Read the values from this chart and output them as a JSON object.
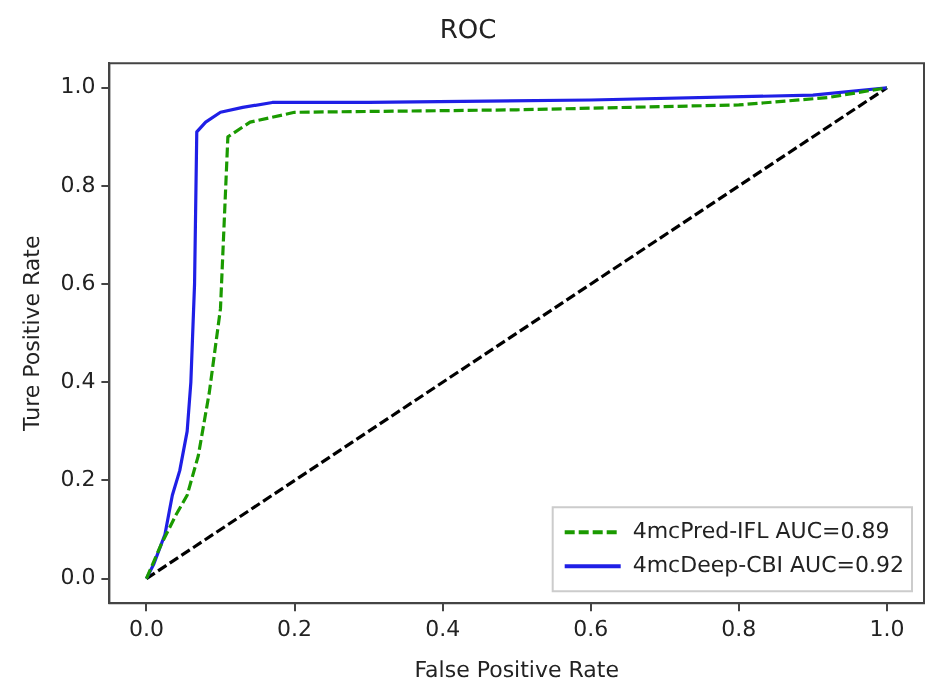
{
  "chart_data": {
    "type": "line",
    "title": "ROC",
    "xlabel": "False Positive Rate",
    "ylabel": "Ture Positive Rate",
    "xlim": [
      -0.05,
      1.05
    ],
    "ylim": [
      -0.05,
      1.05
    ],
    "xticks": [
      {
        "value": 0,
        "label": "0.0"
      },
      0.2,
      0.4,
      0.6,
      0.8,
      {
        "value": 1,
        "label": "1.0"
      }
    ],
    "yticks": [
      {
        "value": 0,
        "label": "0.0"
      },
      0.2,
      0.4,
      0.6,
      0.8,
      {
        "value": 1,
        "label": "1.0"
      }
    ],
    "grid": false,
    "legend": "bottom right",
    "marker": "none",
    "series": [
      {
        "name": "4mcPred-IFL AUC=0.89",
        "color": "#1a9a00",
        "line_style": "dashed",
        "x": [
          0,
          0.02,
          0.04,
          0.055,
          0.07,
          0.085,
          0.1,
          0.11,
          0.14,
          0.2,
          0.5,
          0.8,
          0.92,
          1
        ],
        "values": [
          0,
          0.07,
          0.13,
          0.17,
          0.25,
          0.38,
          0.55,
          0.9,
          0.93,
          0.95,
          0.955,
          0.965,
          0.98,
          1
        ]
      },
      {
        "name": "4mcDeep-CBI AUC=0.92",
        "color": "#1f1fe6",
        "line_style": "solid",
        "x": [
          0,
          0.01,
          0.025,
          0.035,
          0.045,
          0.055,
          0.06,
          0.065,
          0.068,
          0.08,
          0.1,
          0.13,
          0.17,
          0.3,
          0.6,
          0.9,
          1
        ],
        "values": [
          0,
          0.03,
          0.09,
          0.17,
          0.22,
          0.3,
          0.4,
          0.6,
          0.91,
          0.93,
          0.95,
          0.96,
          0.97,
          0.97,
          0.975,
          0.985,
          1
        ]
      },
      {
        "color": "#000000",
        "line_style": "dashed",
        "x": [
          0,
          1
        ],
        "values": [
          0,
          1
        ]
      }
    ]
  }
}
